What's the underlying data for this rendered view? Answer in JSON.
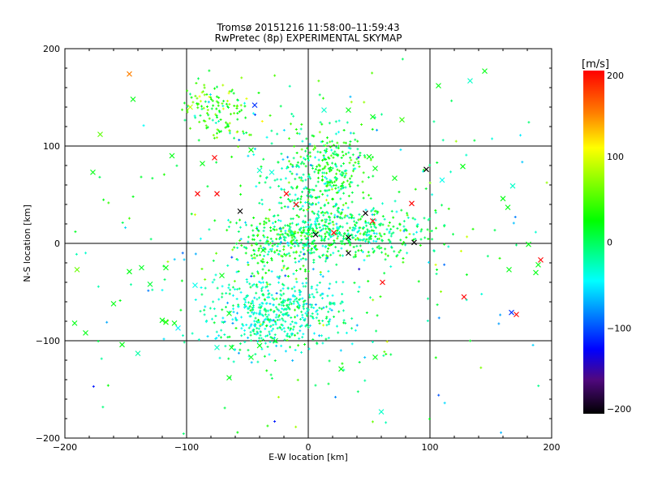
{
  "chart_data": {
    "type": "scatter",
    "title": "Tromsø 20151216 11:58:00–11:59:43",
    "subtitle": "RwPretec (8p) EXPERIMENTAL SKYMAP",
    "xlabel": "E-W location [km]",
    "ylabel": "N-S location [km]",
    "xlim": [
      -200,
      200
    ],
    "ylim": [
      -200,
      200
    ],
    "xticks": [
      -200,
      -100,
      0,
      100,
      200
    ],
    "yticks": [
      -200,
      -100,
      0,
      100,
      200
    ],
    "grid": true,
    "colorbar": {
      "label": "[m/s]",
      "range": [
        -200,
        200
      ],
      "ticks": [
        200,
        100,
        0,
        -100,
        -200
      ],
      "stops": [
        {
          "v": -200,
          "color": "#000000"
        },
        {
          "v": -160,
          "color": "#50087f"
        },
        {
          "v": -125,
          "color": "#0000ff"
        },
        {
          "v": -45,
          "color": "#00ffff"
        },
        {
          "v": 25,
          "color": "#00ff00"
        },
        {
          "v": 110,
          "color": "#ffff00"
        },
        {
          "v": 150,
          "color": "#ff8000"
        },
        {
          "v": 200,
          "color": "#ff0000"
        }
      ]
    },
    "cross_points": [
      [
        -147,
        174,
        150
      ],
      [
        -144,
        148,
        20
      ],
      [
        -171,
        112,
        55
      ],
      [
        -177,
        73,
        20
      ],
      [
        -112,
        90,
        20
      ],
      [
        -77,
        88,
        200
      ],
      [
        -91,
        51,
        200
      ],
      [
        -75,
        51,
        200
      ],
      [
        -18,
        51,
        200
      ],
      [
        -56,
        33,
        -200
      ],
      [
        -87,
        82,
        20
      ],
      [
        -190,
        -27,
        60
      ],
      [
        -192,
        -82,
        20
      ],
      [
        -183,
        -92,
        20
      ],
      [
        -160,
        -62,
        20
      ],
      [
        -147,
        -29,
        20
      ],
      [
        -137,
        -25,
        15
      ],
      [
        -130,
        -42,
        10
      ],
      [
        -117,
        -25,
        20
      ],
      [
        -120,
        -79,
        20
      ],
      [
        -117,
        -81,
        30
      ],
      [
        -110,
        -82,
        20
      ],
      [
        -107,
        -87,
        -50
      ],
      [
        -153,
        -104,
        20
      ],
      [
        -140,
        -113,
        -20
      ],
      [
        -93,
        -43,
        -40
      ],
      [
        -71,
        -33,
        20
      ],
      [
        -65,
        -72,
        20
      ],
      [
        -75,
        -107,
        -30
      ],
      [
        -63,
        -107,
        20
      ],
      [
        -65,
        -138,
        20
      ],
      [
        -47,
        -117,
        15
      ],
      [
        -40,
        -105,
        20
      ],
      [
        -27,
        -100,
        10
      ],
      [
        -97,
        140,
        90
      ],
      [
        -44,
        142,
        -110
      ],
      [
        13,
        137,
        -30
      ],
      [
        33,
        137,
        20
      ],
      [
        53,
        130,
        20
      ],
      [
        77,
        127,
        40
      ],
      [
        107,
        162,
        20
      ],
      [
        133,
        167,
        -30
      ],
      [
        145,
        177,
        20
      ],
      [
        127,
        79,
        20
      ],
      [
        97,
        76,
        -200
      ],
      [
        110,
        65,
        -40
      ],
      [
        55,
        77,
        20
      ],
      [
        71,
        67,
        20
      ],
      [
        85,
        41,
        200
      ],
      [
        160,
        46,
        20
      ],
      [
        164,
        37,
        20
      ],
      [
        168,
        59,
        -30
      ],
      [
        47,
        31,
        -200
      ],
      [
        21,
        11,
        200
      ],
      [
        33,
        6,
        -200
      ],
      [
        33,
        -10,
        -200
      ],
      [
        6,
        9,
        -200
      ],
      [
        87,
        1,
        -200
      ],
      [
        53,
        23,
        200
      ],
      [
        61,
        -40,
        200
      ],
      [
        128,
        -55,
        200
      ],
      [
        171,
        -73,
        200
      ],
      [
        167,
        -71,
        -110
      ],
      [
        191,
        -17,
        200
      ],
      [
        189,
        -22,
        20
      ],
      [
        187,
        -30,
        20
      ],
      [
        181,
        -1,
        20
      ],
      [
        165,
        -27,
        20
      ],
      [
        55,
        -117,
        20
      ],
      [
        27,
        -129,
        20
      ],
      [
        60,
        -173,
        -30
      ],
      [
        -37,
        -7,
        20
      ],
      [
        -47,
        96,
        20
      ],
      [
        -40,
        75,
        -30
      ],
      [
        -30,
        73,
        -35
      ],
      [
        -10,
        40,
        200
      ],
      [
        50,
        89,
        20
      ]
    ],
    "dot_clusters": [
      {
        "cx": 30,
        "cy": 12,
        "sx": 35,
        "sy": 12,
        "n": 420,
        "vmean": 0,
        "vsd": 30
      },
      {
        "cx": -25,
        "cy": -72,
        "sx": 28,
        "sy": 20,
        "n": 520,
        "vmean": -25,
        "vsd": 25
      },
      {
        "cx": 20,
        "cy": 78,
        "sx": 14,
        "sy": 16,
        "n": 160,
        "vmean": 20,
        "vsd": 25
      },
      {
        "cx": -75,
        "cy": 140,
        "sx": 14,
        "sy": 14,
        "n": 130,
        "vmean": 40,
        "vsd": 35
      },
      {
        "cx": -25,
        "cy": 0,
        "sx": 22,
        "sy": 14,
        "n": 220,
        "vmean": 10,
        "vsd": 30
      },
      {
        "cx": 5,
        "cy": 55,
        "sx": 22,
        "sy": 35,
        "n": 260,
        "vmean": -10,
        "vsd": 30
      },
      {
        "cx": 0,
        "cy": 0,
        "sx": 120,
        "sy": 120,
        "n": 320,
        "vmean": 0,
        "vsd": 50
      }
    ],
    "seed": 1216
  }
}
